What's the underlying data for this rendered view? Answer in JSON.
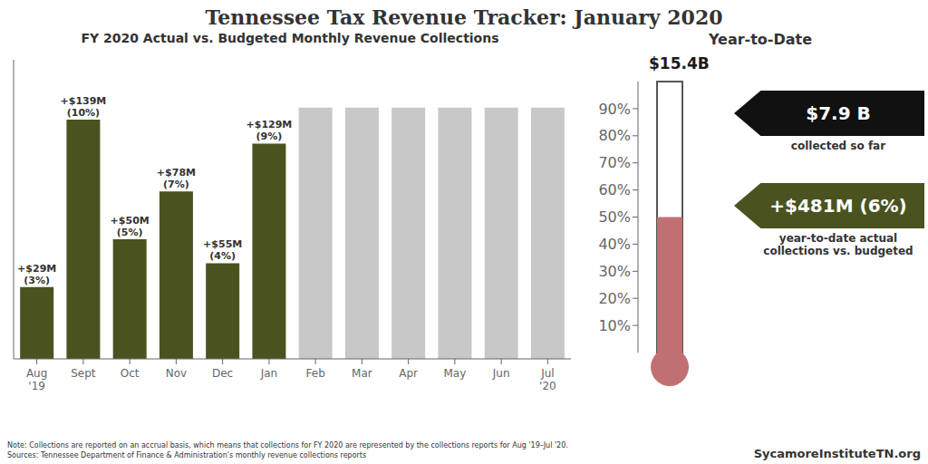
{
  "chart_data": [
    {
      "type": "bar",
      "title": "Tennessee Tax Revenue Tracker: January 2020",
      "subtitle": "FY 2020 Actual vs. Budgeted Monthly Revenue Collections",
      "categories": [
        "Aug\n'19",
        "Sept",
        "Oct",
        "Nov",
        "Dec",
        "Jan",
        "Feb",
        "Mar",
        "Apr",
        "May",
        "Jun",
        "Jul\n'20"
      ],
      "values": [
        3,
        10,
        5,
        7,
        4,
        9,
        10.5,
        10.5,
        10.5,
        10.5,
        10.5,
        10.5
      ],
      "value_labels": [
        "+$29M\n(3%)",
        "+$139M\n(10%)",
        "+$50M\n(5%)",
        "+$78M\n(7%)",
        "+$55M\n(4%)",
        "+$129M\n(9%)",
        null,
        null,
        null,
        null,
        null,
        null
      ],
      "colors": [
        "#4A5320",
        "#4A5320",
        "#4A5320",
        "#4A5320",
        "#4A5320",
        "#4A5320",
        "#C8C8C8",
        "#C8C8C8",
        "#C8C8C8",
        "#C8C8C8",
        "#C8C8C8",
        "#C8C8C8"
      ],
      "ylim": [
        0,
        12.5
      ],
      "data_labels": true,
      "tick_labels": "x",
      "annotations": [
        {
          "text": "Note: Collections are reported on an accrual basis, which means that collections for FY 2020 are represented by the collections reports for Aug '19–Jul '20.\nSources: Tennessee Department of Finance & Administration's monthly revenue collections reports"
        },
        {
          "text": "SycamoreInstituteTN.org"
        }
      ]
    },
    {
      "type": "thermometer",
      "title": "Year-to-Date",
      "categories": [
        null
      ],
      "values": [
        50
      ],
      "color": "#C07070",
      "ylim": [
        0,
        100
      ],
      "yticks": [
        {
          "value": 10,
          "label": "10%"
        },
        {
          "value": 20,
          "label": "20%"
        },
        {
          "value": 30,
          "label": "30%"
        },
        {
          "value": 40,
          "label": "40%"
        },
        {
          "value": 50,
          "label": "50%"
        },
        {
          "value": 60,
          "label": "60%"
        },
        {
          "value": 70,
          "label": "70%"
        },
        {
          "value": 80,
          "label": "80%"
        },
        {
          "value": 90,
          "label": "90%"
        }
      ],
      "tick_labels": "y",
      "annotations": [
        {
          "text": "$15.4B"
        },
        {
          "text": "$7.9 B",
          "color": "#111111"
        },
        {
          "text": "collected so far"
        },
        {
          "text": "+$481M (6%)",
          "color": "#4A5320"
        },
        {
          "text": "year-to-date actual\ncollections vs. budgeted"
        }
      ]
    }
  ]
}
